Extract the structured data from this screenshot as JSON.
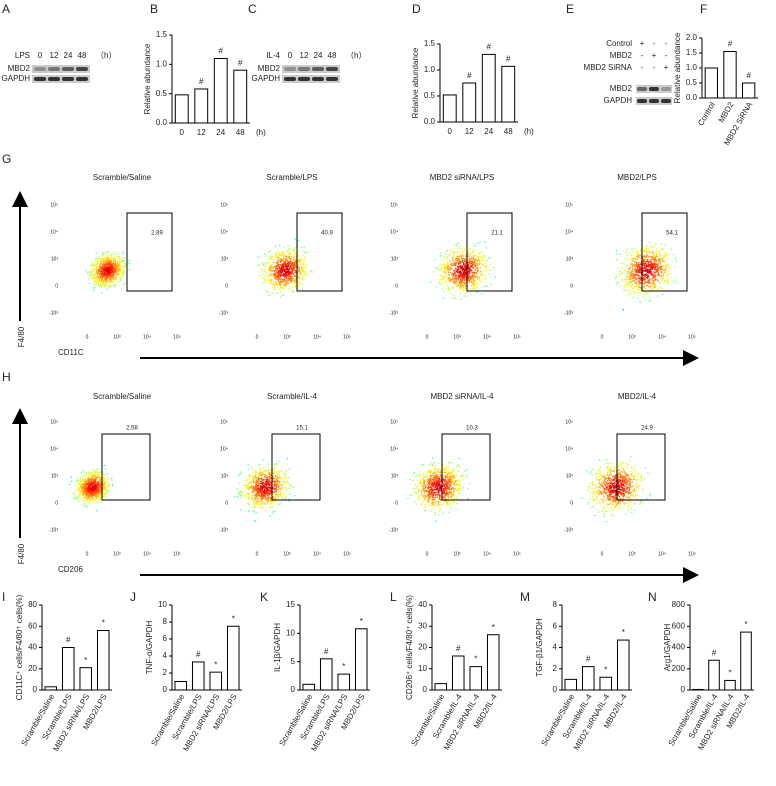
{
  "panel_labels": [
    "A",
    "B",
    "C",
    "D",
    "E",
    "F",
    "G",
    "H",
    "I",
    "J",
    "K",
    "L",
    "M",
    "N"
  ],
  "blots": [
    {
      "treatment": "LPS",
      "lanes": [
        "0",
        "12",
        "24",
        "48"
      ],
      "unit": "（h）",
      "rows": [
        "MBD2",
        "GAPDH"
      ]
    },
    {
      "treatment": "IL-4",
      "lanes": [
        "0",
        "12",
        "24",
        "48"
      ],
      "unit": "（h）",
      "rows": [
        "MBD2",
        "GAPDH"
      ]
    },
    {
      "conditions": [
        "Control",
        "MBD2",
        "MBD2 SiRNA"
      ],
      "signs": [
        [
          "+",
          "-",
          "-"
        ],
        [
          "-",
          "+",
          "-"
        ],
        [
          "-",
          "-",
          "+"
        ]
      ],
      "rows": [
        "MBD2",
        "GAPDH"
      ]
    }
  ],
  "flow": [
    {
      "titles": [
        "Scramble/Saline",
        "Scramble/LPS",
        "MBD2 siRNA/LPS",
        "MBD2/LPS"
      ],
      "percents": [
        2.89,
        40.9,
        21.1,
        54.1
      ],
      "xlabel": "CD11C",
      "ylabel": "F4/80"
    },
    {
      "titles": [
        "Scramble/Saline",
        "Scramble/IL-4",
        "MBD2 siRNA/IL-4",
        "MBD2/IL-4"
      ],
      "percents": [
        2.58,
        15.1,
        10.3,
        24.9
      ],
      "xlabel": "CD206",
      "ylabel": "F4/80"
    }
  ],
  "flow_yticks": [
    "10⁵",
    "10⁴",
    "10³",
    "0",
    "-10³"
  ],
  "flow_xticks": [
    "0",
    "10³",
    "10⁴",
    "10⁵"
  ],
  "chart_data": [
    {
      "type": "bar",
      "ylabel": "Relative abundance",
      "xlabel": "(h)",
      "categories": [
        "0",
        "12",
        "24",
        "48"
      ],
      "values": [
        0.48,
        0.58,
        1.1,
        0.9
      ],
      "annotations": [
        null,
        "#",
        "#",
        "#"
      ],
      "color": "#ffffff",
      "ylim": [
        0,
        1.5
      ],
      "yticks": [
        {
          "value": 0,
          "label": "0.0"
        },
        0.5,
        {
          "value": 1,
          "label": "1.0"
        },
        1.5
      ]
    },
    {
      "type": "bar",
      "ylabel": "Relative abundance",
      "xlabel": "(h)",
      "categories": [
        "0",
        "12",
        "24",
        "48"
      ],
      "values": [
        0.52,
        0.75,
        1.3,
        1.07
      ],
      "annotations": [
        null,
        "#",
        "#",
        "#"
      ],
      "color": "#ffffff",
      "ylim": [
        0,
        1.5
      ],
      "yticks": [
        {
          "value": 0,
          "label": "0.0"
        },
        0.5,
        {
          "value": 1,
          "label": "1.0"
        },
        1.5
      ]
    },
    {
      "type": "bar",
      "ylabel": "Relative abundance",
      "categories": [
        "Control",
        "MBD2",
        "MBD2 SiRNA"
      ],
      "values": [
        1.0,
        1.55,
        0.5
      ],
      "annotations": [
        null,
        "#",
        "#"
      ],
      "color": "#ffffff",
      "ylim": [
        0,
        2
      ],
      "yticks": [
        {
          "value": 0,
          "label": "0.0"
        },
        0.5,
        {
          "value": 1,
          "label": "1.0"
        },
        1.5,
        {
          "value": 2,
          "label": "2.0"
        }
      ]
    },
    {
      "type": "bar",
      "ylabel": "CD11C⁺ cells/F4/80⁺ cells(%)",
      "categories": [
        "Scramble/Saline",
        "Scramble/LPS",
        "MBD2 siRNA/LPS",
        "MBD2/LPS"
      ],
      "values": [
        3,
        40,
        21,
        56
      ],
      "annotations": [
        null,
        "#",
        "*",
        "*"
      ],
      "color": "#ffffff",
      "ylim": [
        0,
        80
      ],
      "yticks": [
        0,
        20,
        40,
        60,
        80
      ]
    },
    {
      "type": "bar",
      "ylabel": "TNF-α/GAPDH",
      "categories": [
        "Scramble/Saline",
        "Scramble/LPS",
        "MBD2 siRNA/LPS",
        "MBD2/LPS"
      ],
      "values": [
        1,
        3.3,
        2.1,
        7.5
      ],
      "annotations": [
        null,
        "#",
        "*",
        "*"
      ],
      "color": "#ffffff",
      "ylim": [
        0,
        10
      ],
      "yticks": [
        0,
        2,
        4,
        6,
        8,
        10
      ]
    },
    {
      "type": "bar",
      "ylabel": "IL-1β/GAPDH",
      "categories": [
        "Scramble/Saline",
        "Scramble/LPS",
        "MBD2 siRNA/LPS",
        "MBD2/LPS"
      ],
      "values": [
        1,
        5.5,
        2.8,
        10.8
      ],
      "annotations": [
        null,
        "#",
        "*",
        "*"
      ],
      "color": "#ffffff",
      "ylim": [
        0,
        15
      ],
      "yticks": [
        0,
        5,
        10,
        15
      ]
    },
    {
      "type": "bar",
      "ylabel": "CD206⁺ cells/F4/80⁺ cells(%)",
      "categories": [
        "Scramble/Saline",
        "Scramble/IL-4",
        "MBD2 siRNA/IL-4",
        "MBD2/IL-4"
      ],
      "values": [
        3,
        16,
        11,
        26
      ],
      "annotations": [
        null,
        "#",
        "*",
        "*"
      ],
      "color": "#ffffff",
      "ylim": [
        0,
        40
      ],
      "yticks": [
        0,
        10,
        20,
        30,
        40
      ]
    },
    {
      "type": "bar",
      "ylabel": "TGF-β1/GAPDH",
      "categories": [
        "Scramble/Saline",
        "Scramble/IL-4",
        "MBD2 siRNA/IL-4",
        "MBD2/IL-4"
      ],
      "values": [
        1,
        2.2,
        1.2,
        4.7
      ],
      "annotations": [
        null,
        "#",
        "*",
        "*"
      ],
      "color": "#ffffff",
      "ylim": [
        0,
        8
      ],
      "yticks": [
        0,
        2,
        4,
        6,
        8
      ]
    },
    {
      "type": "bar",
      "ylabel": "Arg1/GAPDH",
      "categories": [
        "Scramble/Saline",
        "Scramble/IL-4",
        "MBD2 siRNA/IL-4",
        "MBD2/IL-4"
      ],
      "values": [
        5,
        280,
        90,
        545
      ],
      "annotations": [
        null,
        "#",
        "*",
        "*"
      ],
      "color": "#ffffff",
      "ylim": [
        0,
        800
      ],
      "yticks": [
        0,
        200,
        400,
        600,
        800
      ]
    }
  ]
}
